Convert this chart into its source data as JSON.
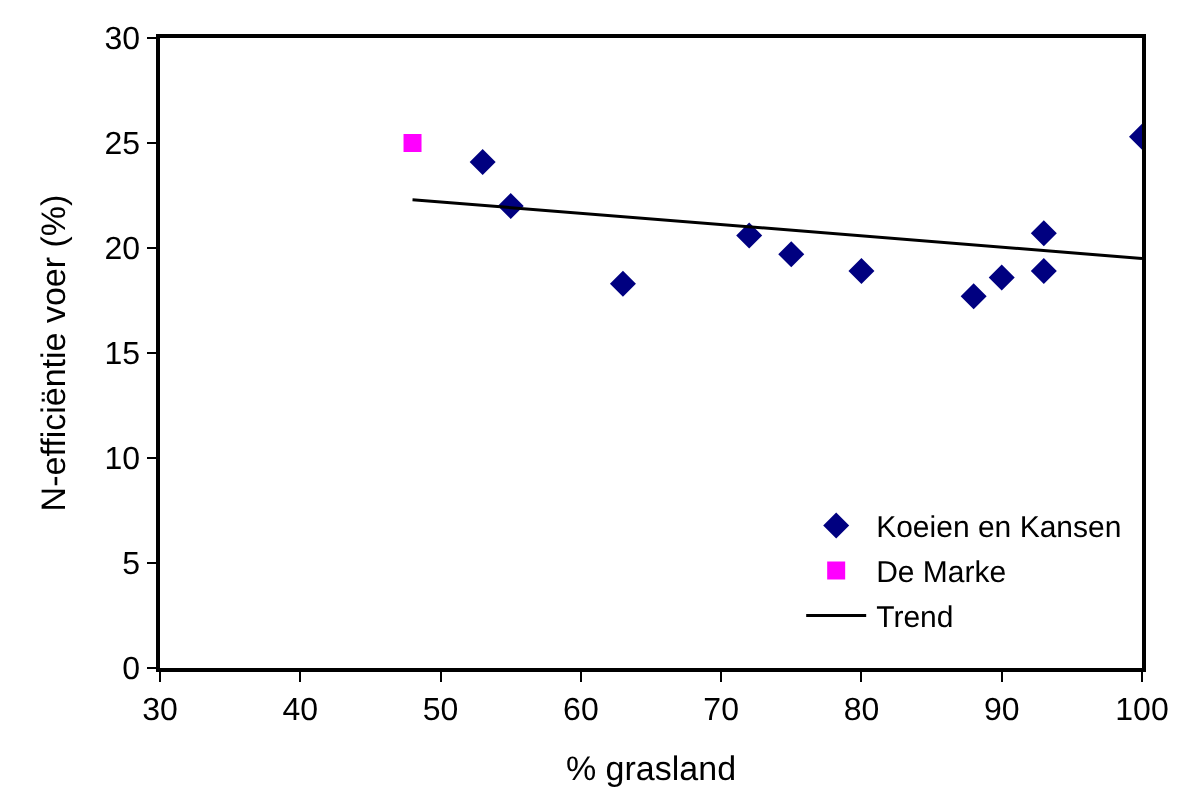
{
  "chart_data": {
    "type": "scatter",
    "xlabel": "% grasland",
    "ylabel": "N-efficiëntie voer (%)",
    "xlim": [
      30,
      100
    ],
    "xticks": [
      30,
      40,
      50,
      60,
      70,
      80,
      90,
      100
    ],
    "ylim": [
      0,
      30
    ],
    "yticks": [
      0,
      5,
      10,
      15,
      20,
      25,
      30
    ],
    "legend": "bottom right",
    "series": [
      {
        "name": "Koeien en Kansen",
        "color": "#000080",
        "marker": "diamond",
        "x": [
          53,
          55,
          63,
          72,
          75,
          80,
          88,
          90,
          93,
          93,
          100
        ],
        "values": [
          24.1,
          22.0,
          18.3,
          20.6,
          19.7,
          18.9,
          17.7,
          18.6,
          20.7,
          18.9,
          25.3
        ]
      },
      {
        "name": "De Marke",
        "color": "#ff00ff",
        "marker": "square",
        "x": [
          48
        ],
        "values": [
          25.0
        ]
      },
      {
        "name": "Trend",
        "type": "line",
        "color": "#000000",
        "marker": "none",
        "line_style": "solid",
        "x": [
          48,
          100
        ],
        "values": [
          22.3,
          19.5
        ]
      }
    ]
  }
}
